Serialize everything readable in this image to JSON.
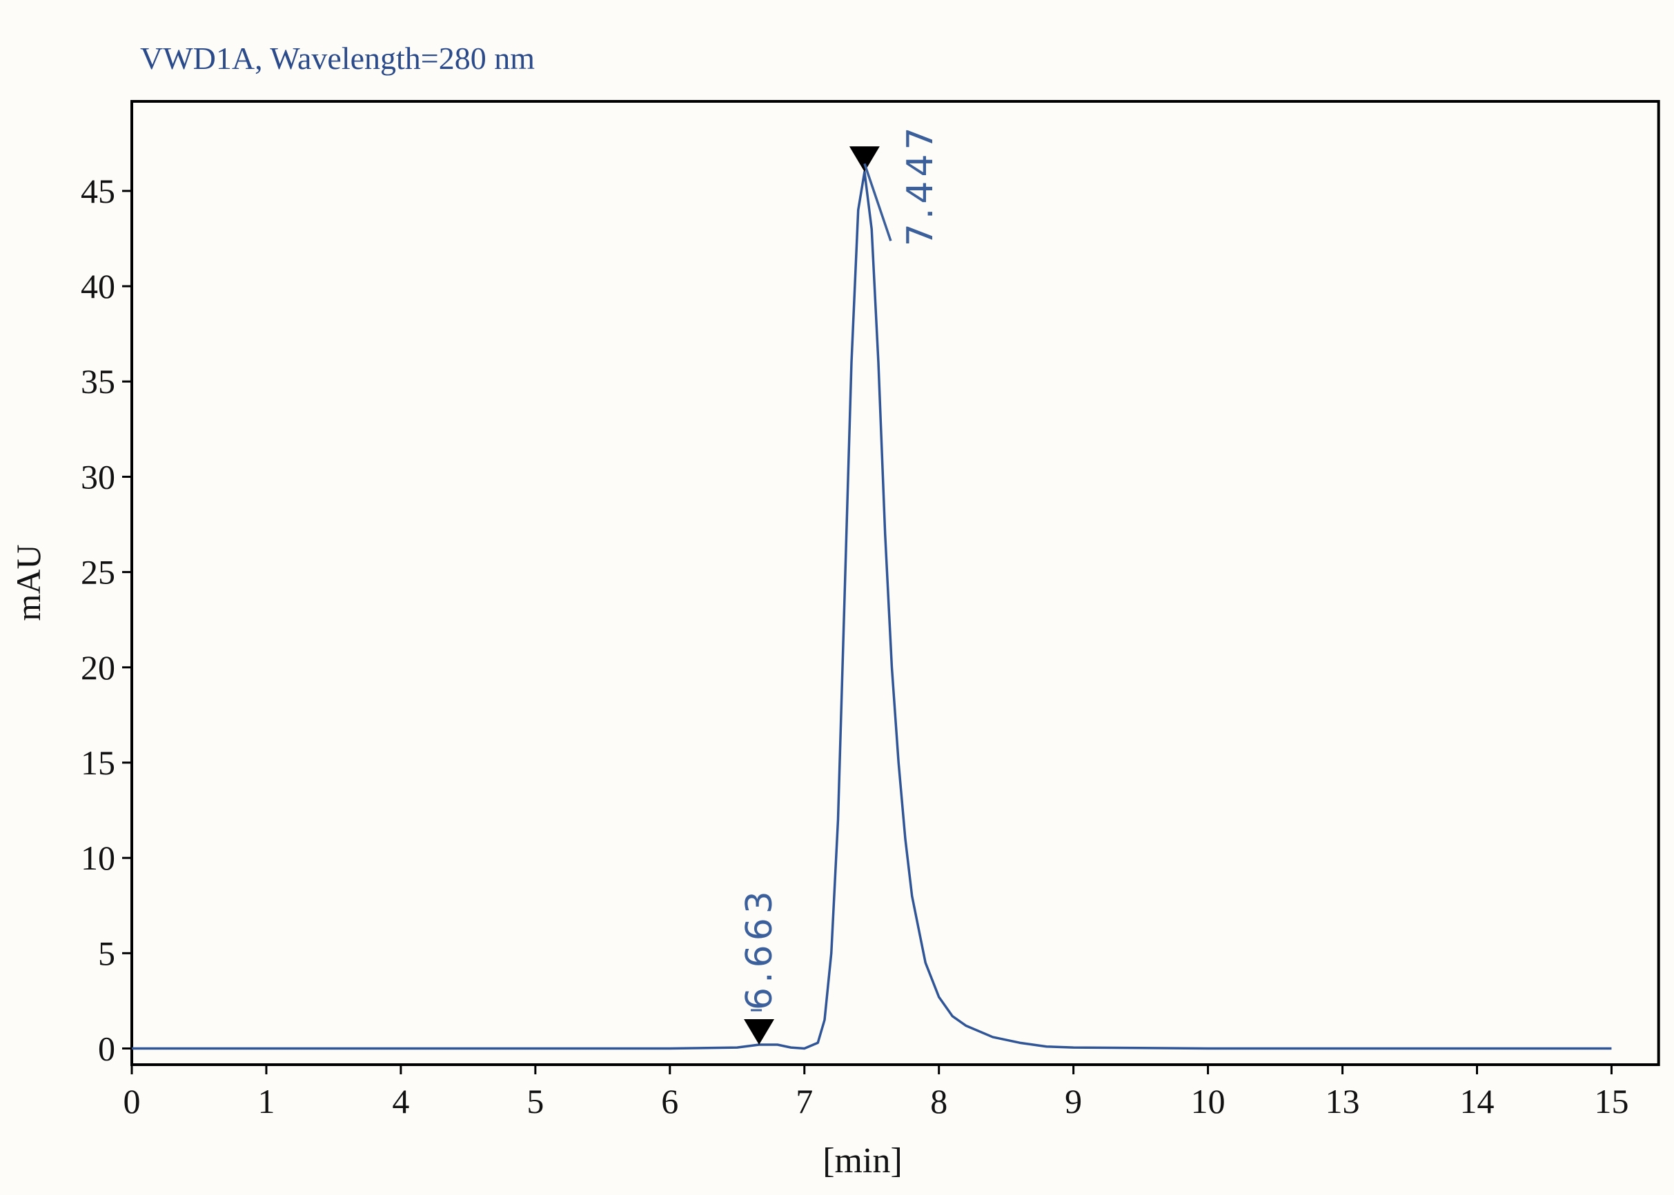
{
  "chart_data": {
    "type": "line",
    "title": "VWD1A, Wavelength=280 nm",
    "x_label": "[min]",
    "y_label": "mAU",
    "x": [
      0,
      1,
      4,
      5,
      6,
      6.5,
      6.663,
      6.8,
      6.9,
      7.0,
      7.1,
      7.15,
      7.2,
      7.25,
      7.3,
      7.35,
      7.4,
      7.447,
      7.5,
      7.55,
      7.6,
      7.65,
      7.7,
      7.75,
      7.8,
      7.9,
      8.0,
      8.1,
      8.2,
      8.4,
      8.6,
      8.8,
      9,
      10,
      13,
      14,
      15
    ],
    "series": [
      {
        "color": "#2f5597",
        "values": [
          0,
          0,
          0,
          0,
          0,
          0.05,
          0.2,
          0.2,
          0.05,
          0,
          0.3,
          1.5,
          5,
          12,
          24,
          36,
          44,
          46,
          43,
          36,
          27,
          20,
          15,
          11,
          8,
          4.5,
          2.7,
          1.7,
          1.2,
          0.6,
          0.3,
          0.1,
          0.05,
          0,
          0,
          0,
          0
        ]
      }
    ],
    "peaks": {
      "x": [
        6.663,
        7.447
      ],
      "values": [
        0.2,
        46
      ]
    },
    "annotation_color": "#3a5f9a",
    "xlim": [
      0,
      15.35
    ],
    "xticks": [
      0,
      1,
      4,
      5,
      6,
      7,
      8,
      9,
      10,
      13,
      14,
      15
    ],
    "ylim": [
      -0.85,
      49.7
    ],
    "yticks": [
      0,
      5,
      10,
      15,
      20,
      25,
      30,
      35,
      40,
      45
    ]
  }
}
